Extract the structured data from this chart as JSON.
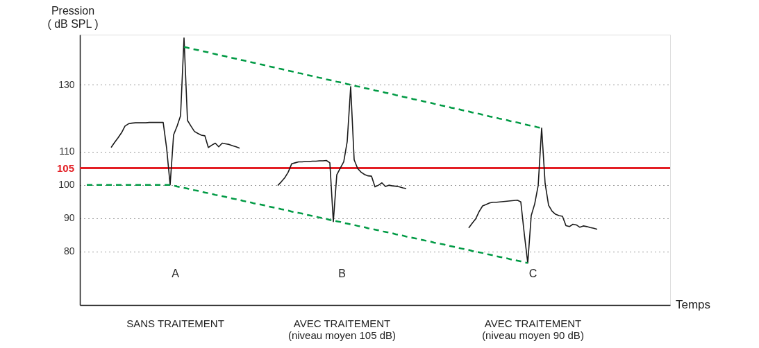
{
  "chart_data": {
    "type": "line",
    "ylabel": "Pression\n( dB SPL )",
    "categories": [
      null,
      null,
      null,
      null,
      null,
      null,
      null,
      null,
      null,
      null,
      null,
      null,
      null,
      null,
      null,
      null,
      null,
      null,
      null,
      null,
      null,
      null,
      null,
      null,
      null,
      null,
      null,
      null,
      null,
      null,
      null,
      null,
      null,
      null,
      null,
      null,
      null,
      null,
      null,
      null,
      null,
      null,
      null,
      null,
      null,
      null,
      null,
      null,
      null,
      null,
      null,
      null,
      null,
      null,
      null,
      null,
      null,
      null,
      null,
      null,
      null,
      null,
      null,
      null,
      null,
      null,
      null,
      null,
      null,
      null,
      null,
      null,
      null,
      null,
      null,
      null,
      null,
      null,
      null,
      null,
      null,
      null,
      null,
      null,
      null,
      null,
      null,
      null,
      null,
      null,
      null,
      null,
      null,
      null,
      null,
      null,
      null,
      null,
      null,
      null,
      null,
      null,
      null,
      null,
      null,
      null,
      null,
      null,
      null,
      null,
      null,
      null,
      null,
      null,
      null,
      null,
      null,
      null,
      null,
      null,
      null,
      null,
      null,
      null,
      null,
      null,
      null,
      null,
      null,
      null,
      null,
      null,
      null,
      null,
      null,
      null,
      null,
      null,
      null,
      null,
      null,
      null,
      null,
      null,
      null,
      null,
      null,
      null
    ],
    "ylim": [
      64,
      145
    ],
    "yticks": [
      80,
      90,
      100,
      110,
      130
    ],
    "grid": "y",
    "tick_labels": "y",
    "series": [
      {
        "color": "#1a1a1a",
        "line_style": "solid",
        "values": [
          null,
          null,
          null,
          null,
          null,
          null,
          null,
          111.2,
          112.7,
          114.1,
          115.6,
          117.6,
          118.3,
          118.5,
          118.6,
          118.6,
          118.6,
          118.6,
          118.7,
          118.7,
          118.7,
          118.7,
          118.7,
          110.9,
          100,
          115,
          117.6,
          120.7,
          144,
          119.3,
          117.6,
          116,
          115.4,
          114.9,
          114.7,
          111.2,
          111.9,
          112.5,
          111.4,
          112.5,
          112.3,
          112.1,
          111.7,
          111.4,
          111.0,
          null,
          null,
          null,
          null,
          null,
          null,
          null,
          null,
          null,
          null,
          null,
          null,
          null,
          null,
          null,
          null,
          null,
          null,
          null,
          null,
          null,
          null,
          null,
          null,
          null,
          null,
          null,
          null,
          null,
          null,
          null,
          null,
          null,
          null,
          null,
          null,
          null,
          null,
          null,
          null,
          null,
          null,
          null,
          null,
          null,
          null,
          null,
          null,
          null,
          null,
          null,
          null,
          null,
          null,
          null,
          null,
          null,
          null,
          null,
          null,
          null,
          null,
          null,
          null,
          null,
          null,
          null,
          null,
          null,
          null,
          null,
          null,
          null,
          null,
          null,
          null,
          null,
          null,
          null,
          null,
          null,
          null,
          null,
          null,
          null,
          null,
          null,
          null,
          null,
          null,
          null,
          null,
          null,
          null,
          null,
          null,
          null,
          null,
          null,
          null,
          null,
          null,
          null
        ]
      },
      {
        "color": "#1a1a1a",
        "line_style": "solid",
        "values": [
          null,
          null,
          null,
          null,
          null,
          null,
          null,
          null,
          null,
          null,
          null,
          null,
          null,
          null,
          null,
          null,
          null,
          null,
          null,
          null,
          null,
          null,
          null,
          null,
          null,
          null,
          null,
          null,
          null,
          null,
          null,
          null,
          null,
          null,
          null,
          null,
          null,
          null,
          null,
          null,
          null,
          null,
          null,
          null,
          null,
          null,
          null,
          null,
          null,
          null,
          null,
          null,
          null,
          null,
          null,
          99.8,
          100.9,
          102.1,
          103.8,
          106.3,
          106.6,
          106.9,
          106.9,
          107.0,
          107.0,
          107.1,
          107.1,
          107.2,
          107.2,
          107.3,
          106.6,
          89.0,
          103.0,
          105.0,
          106.9,
          113.0,
          129.4,
          107.5,
          104.9,
          103.8,
          103.1,
          102.7,
          102.6,
          99.4,
          99.9,
          100.6,
          99.5,
          99.9,
          99.7,
          99.6,
          99.4,
          99.1,
          98.9,
          null,
          null,
          null,
          null,
          null,
          null,
          null,
          null,
          null,
          null,
          null,
          null,
          null,
          null,
          null,
          null,
          null,
          null,
          null,
          null,
          null,
          null,
          null,
          null,
          null,
          null,
          null,
          null,
          null,
          null,
          null,
          null,
          null,
          null,
          null,
          null,
          null,
          null,
          null,
          null,
          null,
          null,
          null,
          null,
          null,
          null,
          null,
          null,
          null,
          null,
          null,
          null,
          null,
          null,
          null
        ]
      },
      {
        "color": "#1a1a1a",
        "line_style": "solid",
        "values": [
          null,
          null,
          null,
          null,
          null,
          null,
          null,
          null,
          null,
          null,
          null,
          null,
          null,
          null,
          null,
          null,
          null,
          null,
          null,
          null,
          null,
          null,
          null,
          null,
          null,
          null,
          null,
          null,
          null,
          null,
          null,
          null,
          null,
          null,
          null,
          null,
          null,
          null,
          null,
          null,
          null,
          null,
          null,
          null,
          null,
          null,
          null,
          null,
          null,
          null,
          null,
          null,
          null,
          null,
          null,
          null,
          null,
          null,
          null,
          null,
          null,
          null,
          null,
          null,
          null,
          null,
          null,
          null,
          null,
          null,
          null,
          null,
          null,
          null,
          null,
          null,
          null,
          null,
          null,
          null,
          null,
          null,
          null,
          null,
          null,
          null,
          null,
          null,
          null,
          null,
          null,
          null,
          null,
          null,
          null,
          null,
          null,
          null,
          null,
          null,
          null,
          null,
          null,
          null,
          null,
          null,
          null,
          null,
          null,
          null,
          87.1,
          88.5,
          89.8,
          92.0,
          93.7,
          94.1,
          94.6,
          94.8,
          94.8,
          94.9,
          95.0,
          95.1,
          95.2,
          95.3,
          95.4,
          94.9,
          85.3,
          76.6,
          90.8,
          94.3,
          99.8,
          117.0,
          100.4,
          93.9,
          92.1,
          91.2,
          90.8,
          90.6,
          87.8,
          87.5,
          88.2,
          88.0,
          87.3,
          87.7,
          87.5,
          87.2,
          87.0,
          86.7
        ]
      },
      {
        "color": "#009a44",
        "line_style": "dashed",
        "values": [
          null,
          null,
          null,
          null,
          null,
          null,
          null,
          null,
          null,
          null,
          null,
          null,
          null,
          null,
          null,
          null,
          null,
          null,
          null,
          null,
          null,
          null,
          null,
          null,
          null,
          null,
          null,
          null,
          141.3,
          141.1,
          140.8,
          140.6,
          140.4,
          140.1,
          139.9,
          139.7,
          139.4,
          139.2,
          138.9,
          138.7,
          138.5,
          138.2,
          138.0,
          137.8,
          137.5,
          137.3,
          137.1,
          136.8,
          136.6,
          136.4,
          136.1,
          135.9,
          135.6,
          135.4,
          135.2,
          134.9,
          134.7,
          134.5,
          134.2,
          134.0,
          133.8,
          133.5,
          133.3,
          133.0,
          132.8,
          132.6,
          132.3,
          132.1,
          131.9,
          131.6,
          131.4,
          131.2,
          130.9,
          130.7,
          130.5,
          130.2,
          130.0,
          129.7,
          129.5,
          129.3,
          129.0,
          128.8,
          128.6,
          128.3,
          128.1,
          127.9,
          127.6,
          127.4,
          127.2,
          126.9,
          126.7,
          126.4,
          126.2,
          126.0,
          125.7,
          125.5,
          125.3,
          125.0,
          124.8,
          124.6,
          124.3,
          124.1,
          123.8,
          123.6,
          123.4,
          123.1,
          122.9,
          122.7,
          122.4,
          122.2,
          122.0,
          121.7,
          121.5,
          121.3,
          121.0,
          120.8,
          120.5,
          120.3,
          120.1,
          119.8,
          119.6,
          119.4,
          119.1,
          118.9,
          118.7,
          118.4,
          118.2,
          117.9,
          117.7,
          117.5,
          117.2,
          117.0,
          null,
          null,
          null,
          null,
          null,
          null,
          null,
          null,
          null,
          null,
          null,
          null,
          null,
          null,
          null,
          null
        ]
      },
      {
        "color": "#009a44",
        "line_style": "dashed",
        "values": [
          100,
          100,
          100,
          100,
          100,
          100,
          100,
          100,
          100,
          100,
          100,
          100,
          100,
          100,
          100,
          100,
          100,
          100,
          100,
          100,
          100,
          100,
          100,
          100,
          100.0,
          99.8,
          99.5,
          99.3,
          99.1,
          98.9,
          98.6,
          98.4,
          98.2,
          98.0,
          97.7,
          97.5,
          97.3,
          97.0,
          96.8,
          96.6,
          96.4,
          96.1,
          95.9,
          95.7,
          95.5,
          95.2,
          95.0,
          94.8,
          94.5,
          94.3,
          94.1,
          93.9,
          93.6,
          93.4,
          93.2,
          93.0,
          92.7,
          92.5,
          92.3,
          92.0,
          91.8,
          91.6,
          91.4,
          91.1,
          90.9,
          90.7,
          90.5,
          90.2,
          90.0,
          89.8,
          89.5,
          89.3,
          89.1,
          88.9,
          88.6,
          88.4,
          88.2,
          88.0,
          87.7,
          87.5,
          87.3,
          87.0,
          86.8,
          86.6,
          86.4,
          86.1,
          85.9,
          85.7,
          85.5,
          85.2,
          85.0,
          84.8,
          84.5,
          84.3,
          84.1,
          83.9,
          83.6,
          83.4,
          83.2,
          83.0,
          82.7,
          82.5,
          82.3,
          82.1,
          81.8,
          81.6,
          81.4,
          81.1,
          80.9,
          80.7,
          80.5,
          80.2,
          80.0,
          79.8,
          79.6,
          79.3,
          79.1,
          78.9,
          78.6,
          78.4,
          78.2,
          78.0,
          77.7,
          77.5,
          77.3,
          77.1,
          76.8,
          76.6,
          null,
          null,
          null,
          null,
          null,
          null,
          null,
          null,
          null,
          null,
          null,
          null,
          null,
          null,
          null,
          null,
          null,
          null,
          null,
          null
        ]
      }
    ],
    "ref_lines": [
      {
        "axis": "y",
        "value": 105,
        "label": "105",
        "color": "#e31e24"
      }
    ],
    "annotations": [
      "A",
      "B",
      "C",
      "SANS TRAITEMENT",
      "AVEC TRAITEMENT\n(niveau moyen 105 dB)",
      "AVEC TRAITEMENT\n(niveau moyen 90 dB)",
      "Temps"
    ]
  }
}
